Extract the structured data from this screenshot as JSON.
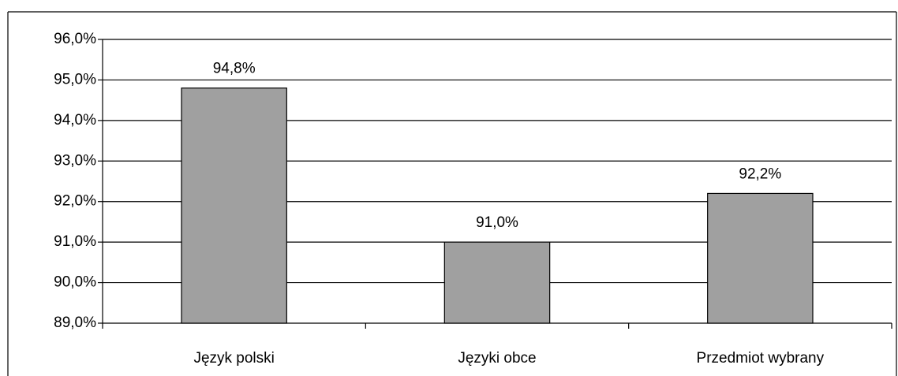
{
  "chart_data": {
    "type": "bar",
    "categories": [
      "Język polski",
      "Języki obce",
      "Przedmiot wybrany"
    ],
    "values": [
      94.8,
      91.0,
      92.2
    ],
    "value_labels": [
      "94,8%",
      "91,0%",
      "92,2%"
    ],
    "color": "#a0a0a0",
    "ylim": [
      89,
      96
    ],
    "yticks": [
      {
        "value": 89,
        "label": "89,0%"
      },
      {
        "value": 90,
        "label": "90,0%"
      },
      {
        "value": 91,
        "label": "91,0%"
      },
      {
        "value": 92,
        "label": "92,0%"
      },
      {
        "value": 93,
        "label": "93,0%"
      },
      {
        "value": 94,
        "label": "94,0%"
      },
      {
        "value": 95,
        "label": "95,0%"
      },
      {
        "value": 96,
        "label": "96,0%"
      }
    ],
    "grid": true
  }
}
